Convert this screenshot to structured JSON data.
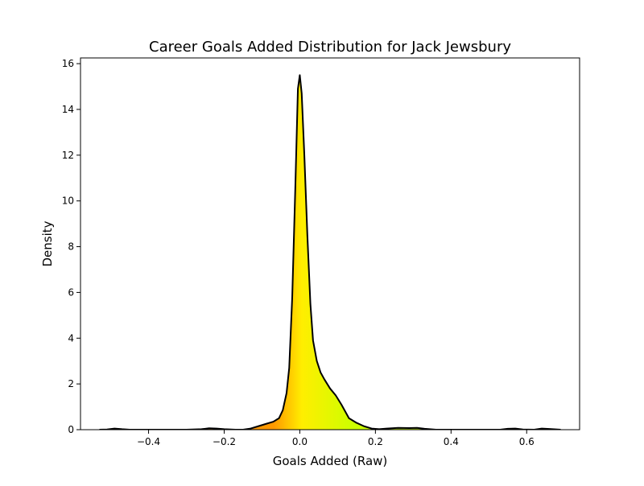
{
  "chart_data": {
    "type": "area",
    "title": "Career Goals Added Distribution for Jack Jewsbury",
    "xlabel": "Goals Added (Raw)",
    "ylabel": "Density",
    "xlim": [
      -0.58,
      0.74
    ],
    "ylim": [
      0,
      16.25
    ],
    "xticks": [
      -0.4,
      -0.2,
      0.0,
      0.2,
      0.4,
      0.6
    ],
    "xtick_labels": [
      "−0.4",
      "−0.2",
      "0.0",
      "0.2",
      "0.4",
      "0.6"
    ],
    "yticks": [
      0,
      2,
      4,
      6,
      8,
      10,
      12,
      14,
      16
    ],
    "ytick_labels": [
      "0",
      "2",
      "4",
      "6",
      "8",
      "10",
      "12",
      "14",
      "16"
    ],
    "grid": false,
    "legend": "none",
    "colors": {
      "line": "#000000",
      "fill_left": "#ff9900",
      "fill_mid": "#ffee00",
      "fill_right": "#ccff00"
    },
    "series": [
      {
        "x": [
          -0.53,
          -0.51,
          -0.49,
          -0.47,
          -0.45,
          -0.43,
          -0.4,
          -0.35,
          -0.3,
          -0.26,
          -0.24,
          -0.22,
          -0.2,
          -0.17,
          -0.15,
          -0.13,
          -0.11,
          -0.09,
          -0.07,
          -0.055,
          -0.045,
          -0.035,
          -0.028,
          -0.02,
          -0.012,
          -0.005,
          0.0,
          0.005,
          0.012,
          0.02,
          0.028,
          0.035,
          0.045,
          0.055,
          0.065,
          0.08,
          0.095,
          0.11,
          0.13,
          0.15,
          0.17,
          0.19,
          0.21,
          0.23,
          0.26,
          0.29,
          0.31,
          0.33,
          0.36,
          0.4,
          0.45,
          0.5,
          0.53,
          0.55,
          0.57,
          0.59,
          0.62,
          0.64,
          0.66,
          0.69
        ],
        "y": [
          0.0,
          0.01,
          0.05,
          0.02,
          0.0,
          0.0,
          0.0,
          0.0,
          0.0,
          0.02,
          0.06,
          0.05,
          0.02,
          0.0,
          0.0,
          0.05,
          0.15,
          0.25,
          0.35,
          0.5,
          0.85,
          1.6,
          2.7,
          5.8,
          10.5,
          14.9,
          15.5,
          14.7,
          12.0,
          8.5,
          5.5,
          3.9,
          3.0,
          2.5,
          2.2,
          1.8,
          1.5,
          1.1,
          0.5,
          0.3,
          0.15,
          0.05,
          0.02,
          0.05,
          0.08,
          0.07,
          0.08,
          0.04,
          0.0,
          0.0,
          0.0,
          0.0,
          0.0,
          0.04,
          0.05,
          0.01,
          0.0,
          0.05,
          0.03,
          0.0
        ]
      }
    ]
  }
}
